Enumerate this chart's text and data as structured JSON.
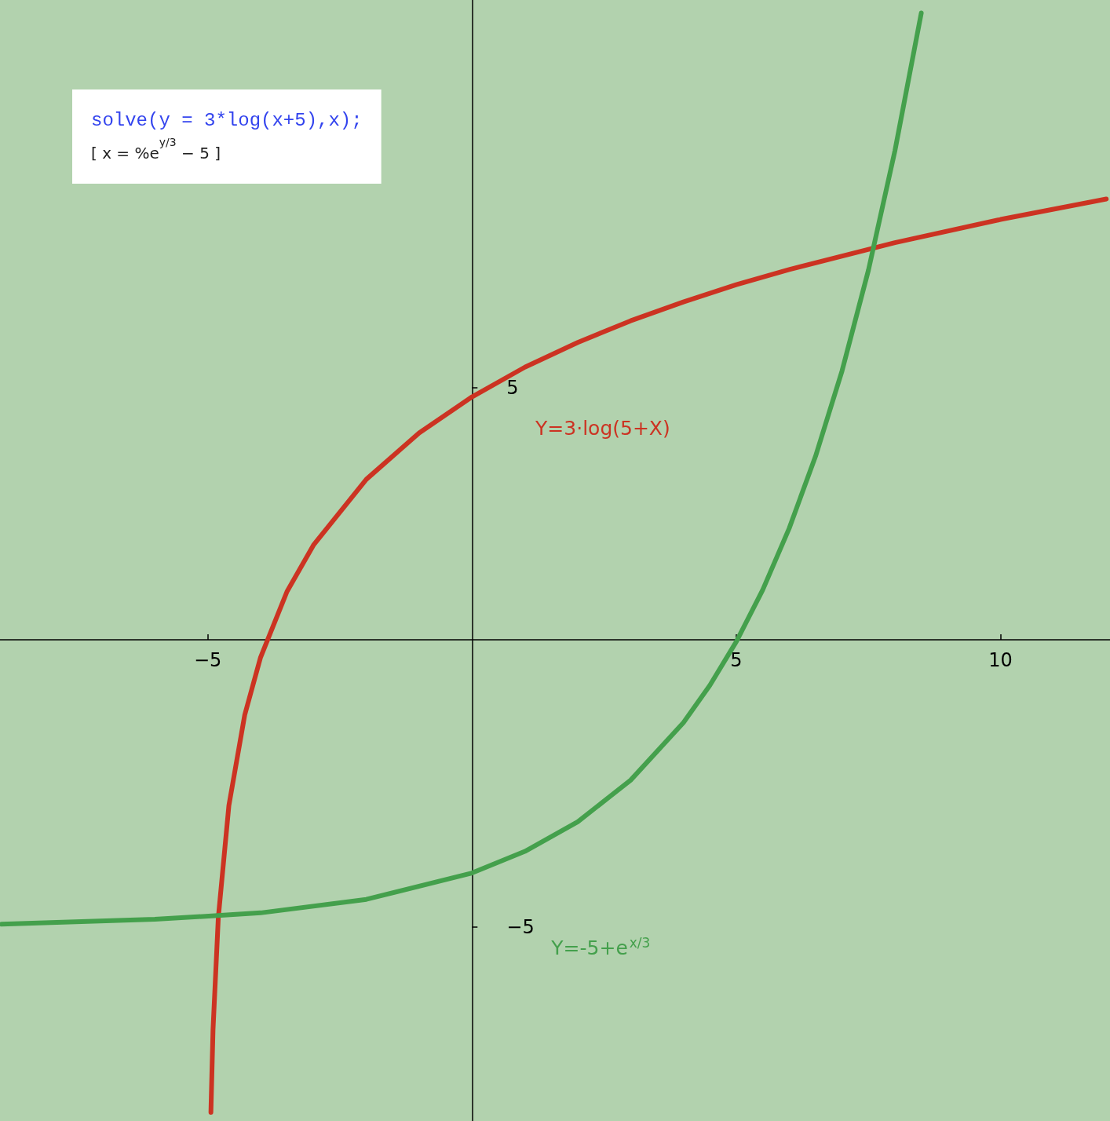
{
  "chart_data": {
    "type": "line",
    "xlim": [
      -8.93,
      12.07
    ],
    "ylim": [
      -8.6,
      12.19
    ],
    "xticks": [
      {
        "value": -5,
        "label": "−5"
      },
      5,
      10
    ],
    "yticks": [
      {
        "value": -5,
        "label": "−5"
      },
      5
    ],
    "grid": false,
    "legend": false,
    "marker": "none",
    "line_style": "solid",
    "annotations": [
      "solve(y = 3*log(x+5),x);",
      "[ x = %e$^{y/3}$ − 5 ]"
    ],
    "series": [
      {
        "name": "Y=3·log(5+X)",
        "color": "#cc3322",
        "x": [
          -4.94,
          -4.9,
          -4.8,
          -4.6,
          -4.3,
          -4,
          -3.5,
          -3,
          -2,
          -1,
          0,
          1,
          2,
          3,
          4,
          5,
          6,
          8,
          10,
          12
        ],
        "values": [
          -8.44,
          -6.91,
          -4.83,
          -2.75,
          -1.07,
          0,
          1.22,
          2.08,
          3.3,
          4.16,
          4.83,
          5.38,
          5.84,
          6.24,
          6.59,
          6.91,
          7.19,
          7.69,
          8.12,
          8.5
        ]
      },
      {
        "name": "Y=-5+e$^{x/3}$",
        "color": "#44a04c",
        "x": [
          -8.9,
          -6,
          -4,
          -2,
          0,
          1,
          2,
          3,
          4,
          4.5,
          5,
          5.5,
          6,
          6.5,
          7,
          7.5,
          8,
          8.5
        ],
        "values": [
          -4.95,
          -4.86,
          -4.74,
          -4.49,
          -4,
          -3.6,
          -3.05,
          -2.28,
          -1.21,
          -0.52,
          0.29,
          1.25,
          2.39,
          3.73,
          5.31,
          7.18,
          9.39,
          11.95
        ]
      }
    ]
  }
}
